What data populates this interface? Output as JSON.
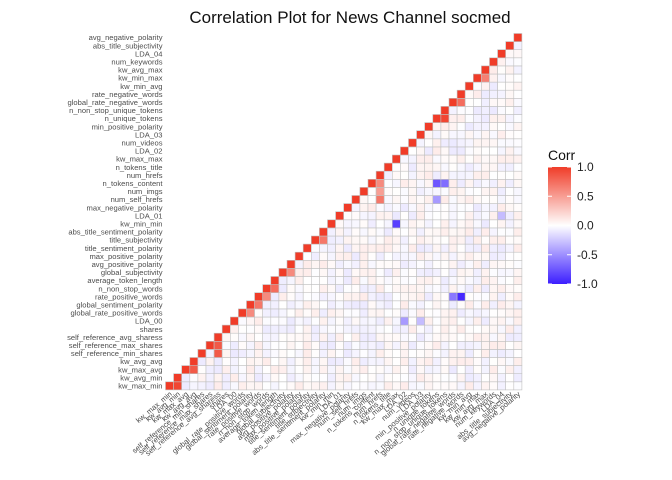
{
  "chart_data": {
    "type": "heatmap",
    "title": "Correlation Plot for News Channel socmed",
    "variables": [
      "kw_max_min",
      "kw_avg_min",
      "kw_max_avg",
      "kw_avg_avg",
      "self_reference_min_shares",
      "self_reference_max_shares",
      "self_reference_avg_sharess",
      "shares",
      "LDA_00",
      "global_rate_positive_words",
      "global_sentiment_polarity",
      "rate_positive_words",
      "n_non_stop_words",
      "average_token_length",
      "global_subjectivity",
      "avg_positive_polarity",
      "max_positive_polarity",
      "title_sentiment_polarity",
      "title_subjectivity",
      "abs_title_sentiment_polarity",
      "kw_min_min",
      "LDA_01",
      "max_negative_polarity",
      "num_self_hrefs",
      "num_imgs",
      "n_tokens_content",
      "num_hrefs",
      "n_tokens_title",
      "kw_max_max",
      "LDA_02",
      "num_videos",
      "LDA_03",
      "min_positive_polarity",
      "n_unique_tokens",
      "n_non_stop_unique_tokens",
      "global_rate_negative_words",
      "rate_negative_words",
      "kw_min_avg",
      "kw_min_max",
      "kw_avg_max",
      "num_keywords",
      "LDA_04",
      "abs_title_subjectivity",
      "avg_negative_polarity"
    ],
    "legend": {
      "title": "Corr",
      "ticks": [
        1.0,
        0.5,
        0.0,
        -0.5,
        -1.0
      ],
      "placement": "right"
    },
    "colors": {
      "high": "#f03c28",
      "mid": "#ffffff",
      "low": "#3c1eff",
      "grid": "#c0c0c0"
    },
    "notable_correlations": [
      {
        "a": "kw_max_min",
        "b": "kw_avg_min",
        "r": 0.95
      },
      {
        "a": "kw_max_avg",
        "b": "kw_avg_avg",
        "r": 0.85
      },
      {
        "a": "self_reference_min_shares",
        "b": "self_reference_avg_sharess",
        "r": 0.85
      },
      {
        "a": "self_reference_max_shares",
        "b": "self_reference_avg_sharess",
        "r": 0.85
      },
      {
        "a": "global_rate_positive_words",
        "b": "global_sentiment_polarity",
        "r": 0.6
      },
      {
        "a": "global_sentiment_polarity",
        "b": "rate_positive_words",
        "r": 0.7
      },
      {
        "a": "rate_positive_words",
        "b": "n_non_stop_words",
        "r": 0.6
      },
      {
        "a": "n_non_stop_words",
        "b": "average_token_length",
        "r": 0.75
      },
      {
        "a": "global_subjectivity",
        "b": "avg_positive_polarity",
        "r": 0.6
      },
      {
        "a": "title_subjectivity",
        "b": "abs_title_sentiment_polarity",
        "r": 0.7
      },
      {
        "a": "num_self_hrefs",
        "b": "num_hrefs",
        "r": 0.7
      },
      {
        "a": "num_imgs",
        "b": "num_hrefs",
        "r": 0.5
      },
      {
        "a": "n_tokens_content",
        "b": "num_hrefs",
        "r": 0.6
      },
      {
        "a": "n_unique_tokens",
        "b": "n_non_stop_unique_tokens",
        "r": 0.95
      },
      {
        "a": "global_rate_negative_words",
        "b": "rate_negative_words",
        "r": 0.75
      },
      {
        "a": "kw_min_max",
        "b": "kw_avg_max",
        "r": 0.65
      },
      {
        "a": "n_tokens_content",
        "b": "n_unique_tokens",
        "r": -0.75
      },
      {
        "a": "n_tokens_content",
        "b": "n_non_stop_unique_tokens",
        "r": -0.65
      },
      {
        "a": "num_self_hrefs",
        "b": "n_unique_tokens",
        "r": -0.45
      },
      {
        "a": "kw_min_min",
        "b": "kw_max_max",
        "r": -0.85
      },
      {
        "a": "rate_positive_words",
        "b": "rate_negative_words",
        "r": -0.95
      },
      {
        "a": "rate_positive_words",
        "b": "global_rate_negative_words",
        "r": -0.6
      },
      {
        "a": "LDA_00",
        "b": "LDA_02",
        "r": -0.45
      },
      {
        "a": "LDA_00",
        "b": "LDA_03",
        "r": -0.3
      },
      {
        "a": "LDA_01",
        "b": "LDA_04",
        "r": -0.3
      },
      {
        "a": "kw_max_min",
        "b": "kw_min_avg",
        "r": 0.1
      }
    ]
  }
}
